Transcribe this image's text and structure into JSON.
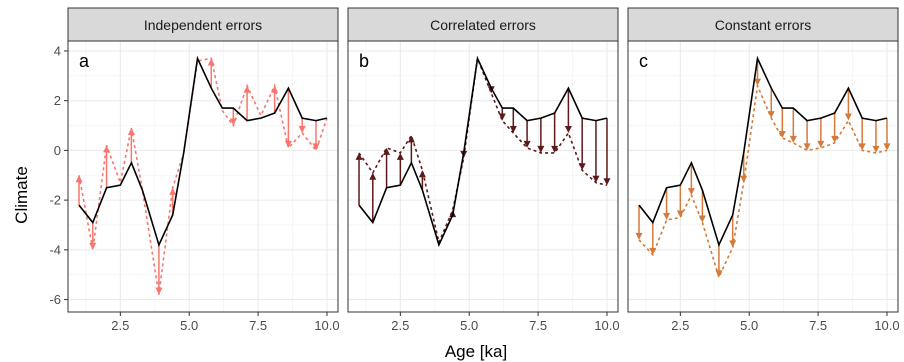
{
  "chart_data": {
    "type": "line",
    "ylabel": "Climate",
    "xlabel": "Age [ka]",
    "xlim": [
      0.6,
      10.4
    ],
    "ylim": [
      -6.5,
      4.4
    ],
    "x_ticks": [
      2.5,
      5.0,
      7.5,
      10.0
    ],
    "x_tick_labels": [
      "2.5",
      "5.0",
      "7.5",
      "10.0"
    ],
    "y_ticks": [
      -6,
      -4,
      -2,
      0,
      2,
      4
    ],
    "y_tick_labels": [
      "-6",
      "-4",
      "-2",
      "0",
      "2",
      "4"
    ],
    "grid": true,
    "x": [
      1.0,
      1.5,
      2.0,
      2.5,
      2.9,
      3.3,
      3.9,
      4.4,
      4.8,
      5.3,
      5.8,
      6.2,
      6.6,
      7.1,
      7.6,
      8.1,
      8.6,
      9.1,
      9.6,
      10.0
    ],
    "true_climate": [
      -2.2,
      -2.9,
      -1.5,
      -1.4,
      -0.5,
      -1.6,
      -3.8,
      -2.6,
      -0.1,
      3.7,
      2.5,
      1.7,
      1.7,
      1.2,
      1.3,
      1.5,
      2.5,
      1.3,
      1.2,
      1.3
    ],
    "panels": [
      {
        "strip": "Independent errors",
        "tag": "a",
        "color": "#F8766D",
        "observed": [
          -1.0,
          -4.0,
          0.2,
          -1.3,
          0.9,
          -1.6,
          -5.8,
          -1.5,
          -0.1,
          3.6,
          3.7,
          1.6,
          1.0,
          2.6,
          1.4,
          2.6,
          0.1,
          0.7,
          0.0,
          1.3
        ]
      },
      {
        "strip": "Correlated errors",
        "tag": "b",
        "color": "#5C1A1B",
        "observed": [
          -0.1,
          -0.9,
          0.1,
          -0.1,
          0.6,
          -0.8,
          -3.7,
          -2.4,
          -0.3,
          3.7,
          2.3,
          1.2,
          0.7,
          0.1,
          -0.1,
          -0.1,
          0.7,
          -0.8,
          -1.3,
          -1.4
        ]
      },
      {
        "strip": "Constant errors",
        "tag": "c",
        "color": "#D47A3A",
        "observed": [
          -3.6,
          -4.2,
          -2.8,
          -2.7,
          -1.8,
          -2.9,
          -5.1,
          -3.9,
          -1.3,
          2.6,
          1.3,
          0.5,
          0.3,
          0.0,
          0.1,
          0.3,
          1.2,
          0.0,
          -0.1,
          0.0
        ]
      }
    ]
  }
}
